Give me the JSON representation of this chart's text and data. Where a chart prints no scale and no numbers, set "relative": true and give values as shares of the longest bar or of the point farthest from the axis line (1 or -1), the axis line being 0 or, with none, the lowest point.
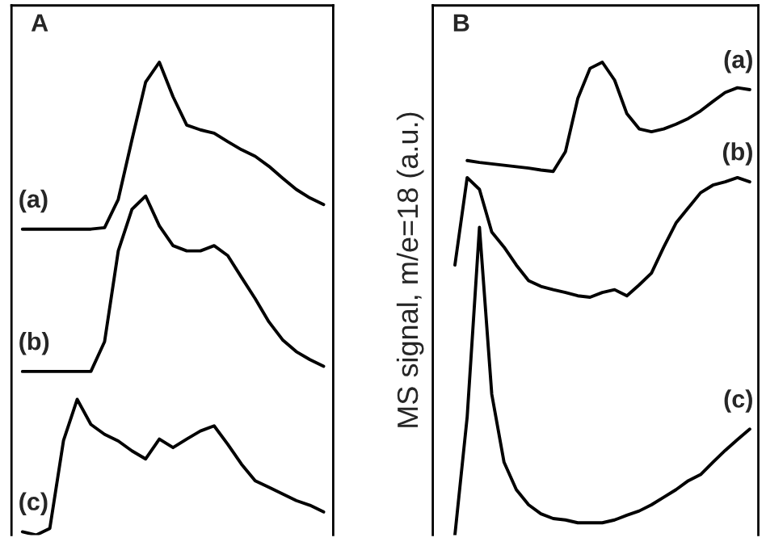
{
  "chart_data": [
    {
      "type": "line",
      "title": "A",
      "relative": true,
      "categories": [
        null,
        null,
        null,
        null,
        null,
        null,
        null,
        null,
        null,
        null,
        null,
        null,
        null,
        null,
        null,
        null,
        null,
        null,
        null,
        null,
        null,
        null,
        null
      ],
      "series": [
        {
          "name": "(a)",
          "color": "#000000",
          "values": [
            0.647,
            0.647,
            0.647,
            0.647,
            0.647,
            0.647,
            0.65,
            0.71,
            0.836,
            0.958,
            1.0,
            0.927,
            0.867,
            0.857,
            0.85,
            0.832,
            0.815,
            0.801,
            0.78,
            0.755,
            0.731,
            0.713,
            0.699
          ]
        },
        {
          "name": "(b)",
          "color": "#000000",
          "values": [
            0.346,
            0.346,
            0.346,
            0.346,
            0.346,
            0.346,
            0.409,
            0.601,
            0.689,
            0.717,
            0.654,
            0.612,
            0.601,
            0.601,
            0.612,
            0.591,
            0.545,
            0.5,
            0.451,
            0.413,
            0.388,
            0.371,
            0.357
          ]
        },
        {
          "name": "(c)",
          "color": "#000000",
          "values": [
            0.007,
            0.0,
            0.014,
            0.2,
            0.287,
            0.234,
            0.213,
            0.199,
            0.178,
            0.161,
            0.203,
            0.185,
            0.203,
            0.22,
            0.231,
            0.192,
            0.15,
            0.115,
            0.101,
            0.087,
            0.073,
            0.063,
            0.049
          ]
        }
      ]
    },
    {
      "type": "line",
      "title": "B",
      "ylabel": "MS signal, m/e=18 (a.u.)",
      "relative": true,
      "categories": [
        null,
        null,
        null,
        null,
        null,
        null,
        null,
        null,
        null,
        null,
        null,
        null,
        null,
        null,
        null,
        null,
        null,
        null,
        null,
        null,
        null,
        null,
        null,
        null,
        null,
        null
      ],
      "series": [
        {
          "name": "(a)",
          "color": "#000000",
          "values": [
            null,
            null,
            0.792,
            0.788,
            0.785,
            0.782,
            0.779,
            0.776,
            0.772,
            0.769,
            0.811,
            0.923,
            0.987,
            1.0,
            0.962,
            0.891,
            0.859,
            0.853,
            0.859,
            0.869,
            0.881,
            0.897,
            0.917,
            0.936,
            0.946,
            0.942
          ]
        },
        {
          "name": "(b)",
          "color": "#000000",
          "values": [
            null,
            0.571,
            0.756,
            0.731,
            0.641,
            0.609,
            0.571,
            0.538,
            0.526,
            0.519,
            0.513,
            0.506,
            0.503,
            0.513,
            0.519,
            0.506,
            0.529,
            0.554,
            0.609,
            0.66,
            0.692,
            0.724,
            0.74,
            0.747,
            0.756,
            0.747
          ]
        },
        {
          "name": "(c)",
          "color": "#000000",
          "values": [
            null,
            0.0,
            0.25,
            0.651,
            0.298,
            0.154,
            0.096,
            0.064,
            0.045,
            0.035,
            0.032,
            0.026,
            0.026,
            0.026,
            0.032,
            0.042,
            0.051,
            0.064,
            0.08,
            0.096,
            0.115,
            0.128,
            0.154,
            0.179,
            0.202,
            0.224
          ]
        }
      ]
    }
  ]
}
